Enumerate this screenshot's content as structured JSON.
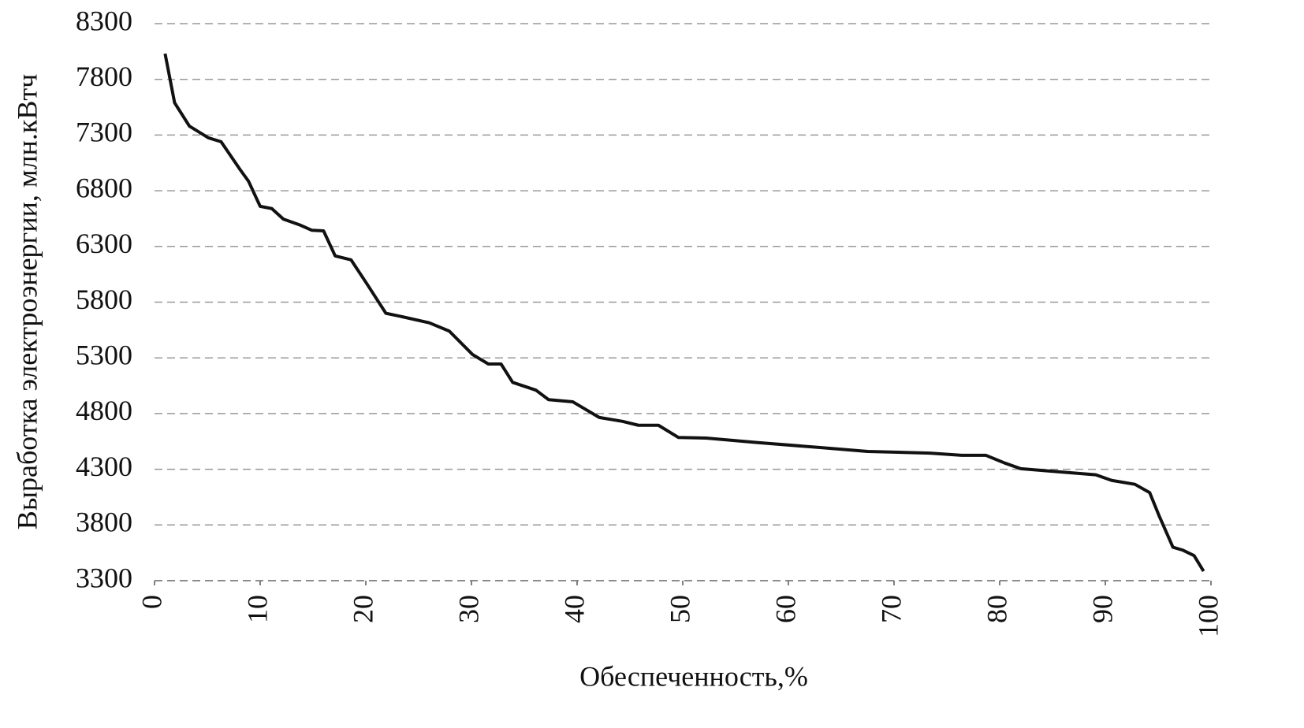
{
  "chart_data": {
    "type": "line",
    "x_label": "Обеспеченность,%",
    "y_label": "Выработка электроэнергии, млн.кВтч",
    "x": [
      1.0,
      1.9,
      3.3,
      5.1,
      6.3,
      8.1,
      8.9,
      10.0,
      11.1,
      12.2,
      13.7,
      14.9,
      16.0,
      17.1,
      18.6,
      20.1,
      21.9,
      23.4,
      26.0,
      27.9,
      30.1,
      31.6,
      32.8,
      33.9,
      36.1,
      37.3,
      39.6,
      42.1,
      44.3,
      45.8,
      47.7,
      49.6,
      52.2,
      57.0,
      63.0,
      67.5,
      73.4,
      76.4,
      78.7,
      80.5,
      82.0,
      84.6,
      89.1,
      90.6,
      92.8,
      94.2,
      95.1,
      96.4,
      97.3,
      98.4,
      99.3
    ],
    "series": [
      {
        "name": "Выработка",
        "color": "#111111",
        "values": [
          8030,
          7590,
          7380,
          7275,
          7240,
          6990,
          6885,
          6660,
          6640,
          6545,
          6495,
          6445,
          6440,
          6215,
          6180,
          5965,
          5700,
          5670,
          5615,
          5540,
          5330,
          5245,
          5245,
          5080,
          5010,
          4925,
          4905,
          4765,
          4730,
          4695,
          4695,
          4585,
          4580,
          4540,
          4495,
          4460,
          4445,
          4425,
          4425,
          4355,
          4305,
          4285,
          4250,
          4200,
          4165,
          4090,
          3880,
          3600,
          3575,
          3525,
          3385
        ]
      }
    ],
    "xlim": [
      0,
      100
    ],
    "xticks": [
      0,
      10,
      20,
      30,
      40,
      50,
      60,
      70,
      80,
      90,
      100
    ],
    "ylim": [
      3300,
      8300
    ],
    "yticks": [
      3300,
      3800,
      4300,
      4800,
      5300,
      5800,
      6300,
      6800,
      7300,
      7800,
      8300
    ],
    "grid": true
  }
}
